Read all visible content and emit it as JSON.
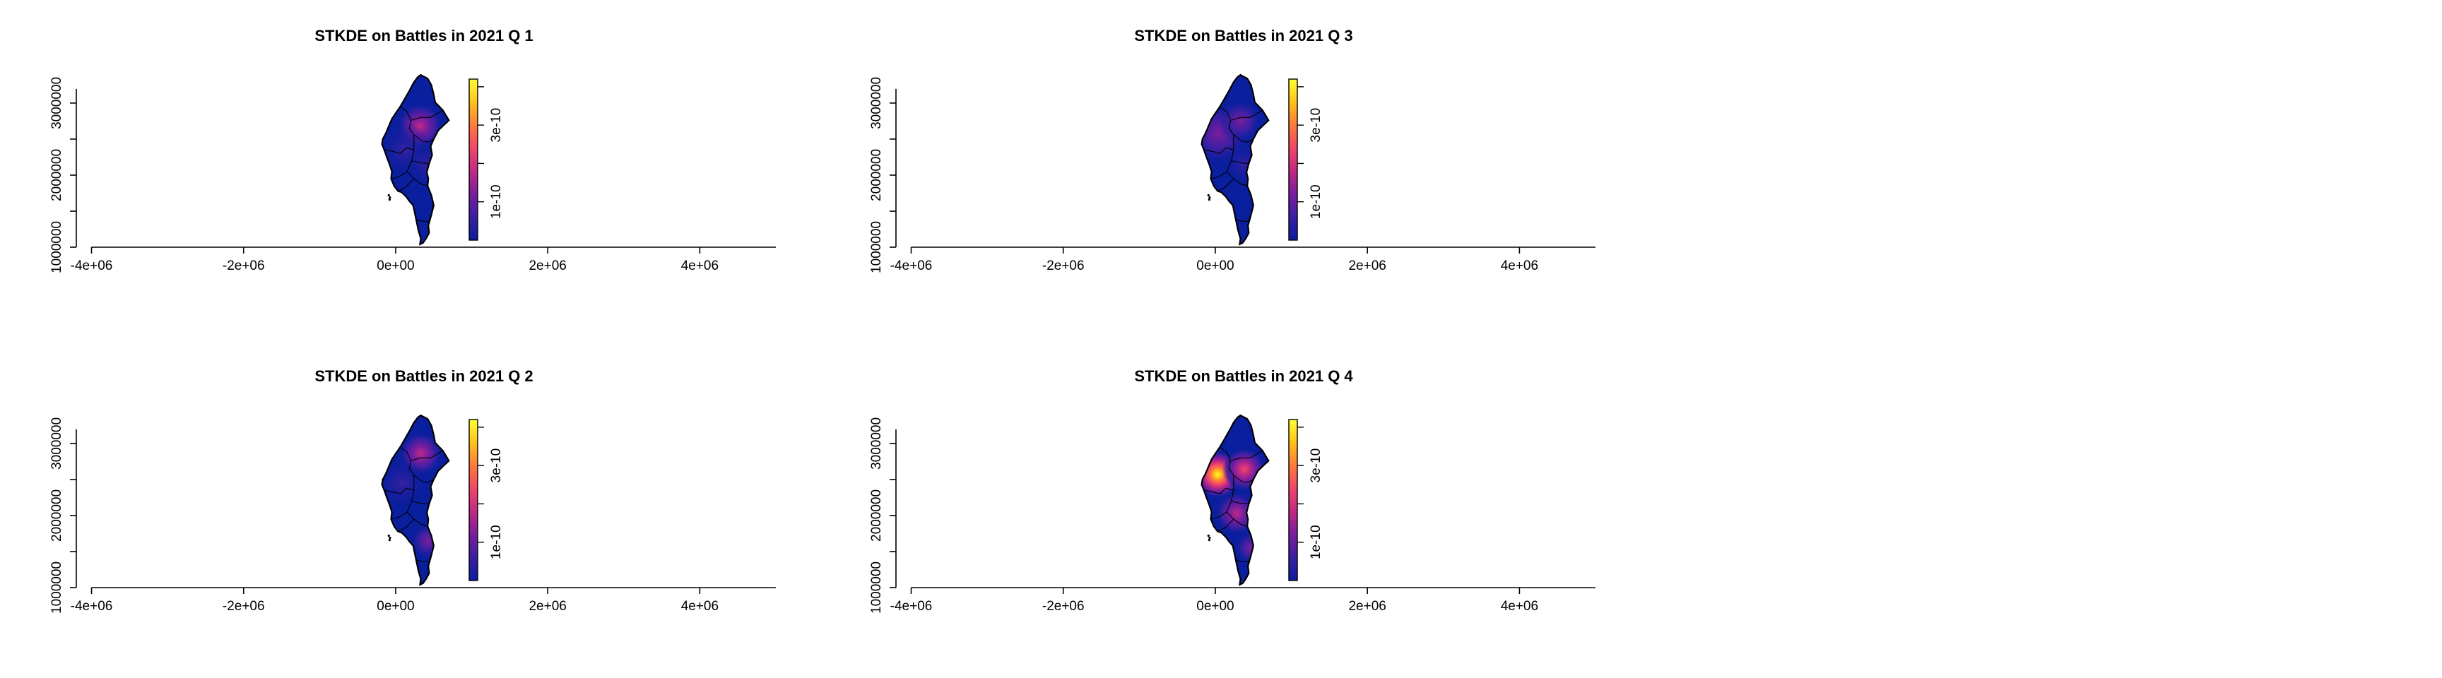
{
  "figure": {
    "background": "#ffffff",
    "axis_color": "#000000",
    "map_outline_color": "#000000",
    "colormap": [
      "#0a1f9e",
      "#3b1fa3",
      "#7a1e9e",
      "#c02a83",
      "#f0476a",
      "#ff7a3a",
      "#ffc21a",
      "#ffff33"
    ]
  },
  "chart_data": [
    {
      "type": "heatmap",
      "title": "STKDE on Battles in 2021 Q 1",
      "xlabel": "",
      "ylabel": "",
      "xlim": [
        -4200000,
        5000000
      ],
      "ylim": [
        1000000,
        3450000
      ],
      "x_ticks": [
        -4000000,
        -2000000,
        0,
        2000000,
        4000000
      ],
      "x_tick_labels": [
        "-4e+06",
        "-2e+06",
        "0e+00",
        "2e+06",
        "4e+06"
      ],
      "y_ticks": [
        1000000,
        1500000,
        2000000,
        2500000,
        3000000
      ],
      "y_tick_labels": [
        "1000000",
        "",
        "2000000",
        "",
        "3000000"
      ],
      "colorbar": {
        "range": [
          0,
          4.2e-10
        ],
        "ticks": [
          1e-10,
          2e-10,
          3e-10,
          4e-10
        ],
        "tick_labels": [
          "1e-10",
          "",
          "3e-10",
          ""
        ]
      },
      "hotspots": [
        {
          "x": 320000,
          "y": 2680000,
          "level": 0.38,
          "spread": 140000
        },
        {
          "x": 120000,
          "y": 2350000,
          "level": 0.18,
          "spread": 160000
        },
        {
          "x": 420000,
          "y": 2150000,
          "level": 0.15,
          "spread": 130000
        }
      ]
    },
    {
      "type": "heatmap",
      "title": "STKDE on Battles in 2021 Q 3",
      "xlabel": "",
      "ylabel": "",
      "xlim": [
        -4200000,
        5000000
      ],
      "ylim": [
        1000000,
        3450000
      ],
      "x_ticks": [
        -4000000,
        -2000000,
        0,
        2000000,
        4000000
      ],
      "x_tick_labels": [
        "-4e+06",
        "-2e+06",
        "0e+00",
        "2e+06",
        "4e+06"
      ],
      "y_ticks": [
        1000000,
        1500000,
        2000000,
        2500000,
        3000000
      ],
      "y_tick_labels": [
        "1000000",
        "",
        "2000000",
        "",
        "3000000"
      ],
      "colorbar": {
        "range": [
          0,
          4.2e-10
        ],
        "ticks": [
          1e-10,
          2e-10,
          3e-10,
          4e-10
        ],
        "tick_labels": [
          "1e-10",
          "",
          "3e-10",
          ""
        ]
      },
      "hotspots": [
        {
          "x": 40000,
          "y": 2580000,
          "level": 0.33,
          "spread": 190000
        },
        {
          "x": 330000,
          "y": 2750000,
          "level": 0.32,
          "spread": 130000
        },
        {
          "x": 380000,
          "y": 2150000,
          "level": 0.18,
          "spread": 120000
        }
      ]
    },
    {
      "type": "heatmap",
      "title": "STKDE on Battles in 2021 Q 2",
      "xlabel": "",
      "ylabel": "",
      "xlim": [
        -4200000,
        5000000
      ],
      "ylim": [
        1000000,
        3450000
      ],
      "x_ticks": [
        -4000000,
        -2000000,
        0,
        2000000,
        4000000
      ],
      "x_tick_labels": [
        "-4e+06",
        "-2e+06",
        "0e+00",
        "2e+06",
        "4e+06"
      ],
      "y_ticks": [
        1000000,
        1500000,
        2000000,
        2500000,
        3000000
      ],
      "y_tick_labels": [
        "1000000",
        "",
        "2000000",
        "",
        "3000000"
      ],
      "colorbar": {
        "range": [
          0,
          4.2e-10
        ],
        "ticks": [
          1e-10,
          2e-10,
          3e-10,
          4e-10
        ],
        "tick_labels": [
          "1e-10",
          "",
          "3e-10",
          ""
        ]
      },
      "hotspots": [
        {
          "x": 330000,
          "y": 2860000,
          "level": 0.42,
          "spread": 130000
        },
        {
          "x": 80000,
          "y": 2450000,
          "level": 0.16,
          "spread": 150000
        },
        {
          "x": 430000,
          "y": 1650000,
          "level": 0.22,
          "spread": 110000
        }
      ]
    },
    {
      "type": "heatmap",
      "title": "STKDE on Battles in 2021 Q 4",
      "xlabel": "",
      "ylabel": "",
      "xlim": [
        -4200000,
        5000000
      ],
      "ylim": [
        1000000,
        3450000
      ],
      "x_ticks": [
        -4000000,
        -2000000,
        0,
        2000000,
        4000000
      ],
      "x_tick_labels": [
        "-4e+06",
        "-2e+06",
        "0e+00",
        "2e+06",
        "4e+06"
      ],
      "y_ticks": [
        1000000,
        1500000,
        2000000,
        2500000,
        3000000
      ],
      "y_tick_labels": [
        "1000000",
        "",
        "2000000",
        "",
        "3000000"
      ],
      "colorbar": {
        "range": [
          0,
          4.2e-10
        ],
        "ticks": [
          1e-10,
          2e-10,
          3e-10,
          4e-10
        ],
        "tick_labels": [
          "1e-10",
          "",
          "3e-10",
          ""
        ]
      },
      "hotspots": [
        {
          "x": 30000,
          "y": 2570000,
          "level": 1.0,
          "spread": 140000
        },
        {
          "x": 380000,
          "y": 2640000,
          "level": 0.55,
          "spread": 130000
        },
        {
          "x": 280000,
          "y": 2030000,
          "level": 0.42,
          "spread": 130000
        },
        {
          "x": 470000,
          "y": 1550000,
          "level": 0.3,
          "spread": 100000
        }
      ]
    }
  ]
}
